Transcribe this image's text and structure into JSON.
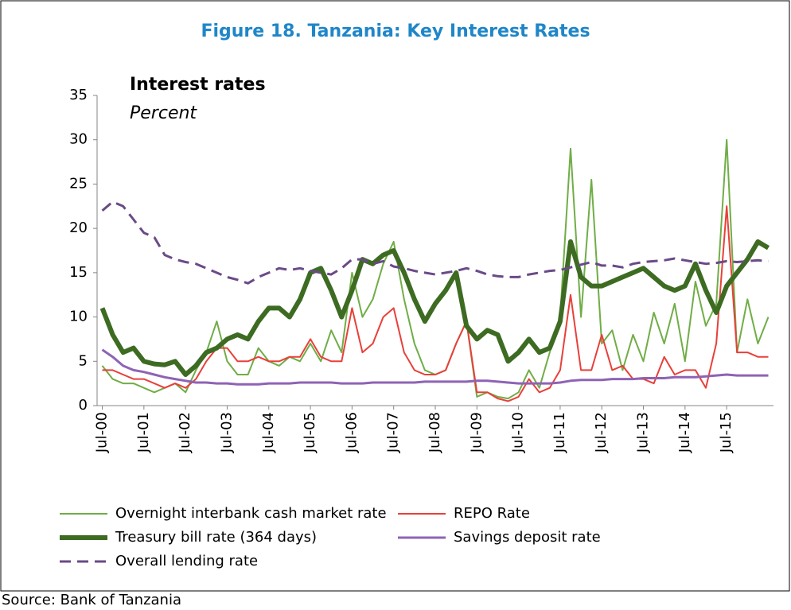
{
  "chart_data": {
    "type": "line",
    "title": "Figure 18. Tanzania: Key Interest Rates",
    "subtitle": "Interest rates",
    "y_label": "Percent",
    "source": "Source: Bank of Tanzania",
    "categories": [
      "Jul-00",
      null,
      null,
      null,
      "Jul-01",
      null,
      null,
      null,
      "Jul-02",
      null,
      null,
      null,
      "Jul-03",
      null,
      null,
      null,
      "Jul-04",
      null,
      null,
      null,
      "Jul-05",
      null,
      null,
      null,
      "Jul-06",
      null,
      null,
      null,
      "Jul-07",
      null,
      null,
      null,
      "Jul-08",
      null,
      null,
      null,
      "Jul-09",
      null,
      null,
      null,
      "Jul-10",
      null,
      null,
      null,
      "Jul-11",
      null,
      null,
      null,
      "Jul-12",
      null,
      null,
      null,
      "Jul-13",
      null,
      null,
      null,
      "Jul-14",
      null,
      null,
      null,
      "Jul-15",
      null,
      null,
      null,
      null
    ],
    "ylim": [
      0,
      35
    ],
    "yticks": [
      0,
      5,
      10,
      15,
      20,
      25,
      30,
      35
    ],
    "grid": false,
    "series": [
      {
        "name": "Overnight interbank cash market rate",
        "color": "#70ad47",
        "line_width": 2,
        "dashed": false,
        "values": [
          4.5,
          3,
          2.5,
          2.5,
          2,
          1.5,
          2,
          2.5,
          1.5,
          4,
          6,
          9.5,
          5,
          3.5,
          3.5,
          6.5,
          5,
          4.5,
          5.5,
          5,
          7,
          5,
          8.5,
          6,
          15,
          10,
          12,
          16,
          18.5,
          12,
          7,
          4,
          3.5,
          4,
          7,
          9.5,
          1,
          1.5,
          1,
          0.8,
          1.5,
          4,
          2,
          6,
          10,
          29,
          10,
          25.5,
          7,
          8.5,
          4,
          8,
          5,
          10.5,
          7,
          11.5,
          5,
          14,
          9,
          11.5,
          30,
          6,
          12,
          7,
          10
        ]
      },
      {
        "name": "REPO Rate",
        "color": "#e8403a",
        "line_width": 2,
        "dashed": false,
        "values": [
          4,
          4,
          3.5,
          3,
          3,
          2.5,
          2,
          2.5,
          2,
          3,
          5,
          6.5,
          6.5,
          5,
          5,
          5.5,
          5,
          5,
          5.5,
          5.5,
          7.5,
          5.5,
          5,
          5,
          11,
          6,
          7,
          10,
          11,
          6,
          4,
          3.5,
          3.5,
          4,
          7,
          9.5,
          1.5,
          1.5,
          0.8,
          0.5,
          1,
          3,
          1.5,
          2,
          4,
          12.5,
          4,
          4,
          8,
          4,
          4.5,
          3,
          3,
          2.5,
          5.5,
          3.5,
          4,
          4,
          2,
          7,
          22.5,
          6,
          6,
          5.5,
          5.5
        ]
      },
      {
        "name": "Treasury bill rate (364 days)",
        "color": "#3d6b22",
        "line_width": 6,
        "dashed": false,
        "values": [
          11,
          8,
          6,
          6.5,
          5,
          4.7,
          4.6,
          5,
          3.5,
          4.5,
          6,
          6.5,
          7.5,
          8,
          7.5,
          9.5,
          11,
          11,
          10,
          12,
          15,
          15.5,
          13,
          10,
          13,
          16.5,
          16,
          17,
          17.5,
          15,
          12,
          9.5,
          11.5,
          13,
          15,
          9,
          7.5,
          8.5,
          8,
          5,
          6,
          7.5,
          6,
          6.5,
          9.5,
          18.5,
          14.5,
          13.5,
          13.5,
          14,
          14.5,
          15,
          15.5,
          14.5,
          13.5,
          13,
          13.5,
          16,
          13,
          10.5,
          13.5,
          15,
          16.5,
          18.5,
          17.8
        ]
      },
      {
        "name": "Savings deposit rate",
        "color": "#8e63b5",
        "line_width": 3,
        "dashed": false,
        "values": [
          6.3,
          5.5,
          4.5,
          4,
          3.8,
          3.5,
          3.2,
          3,
          2.8,
          2.6,
          2.6,
          2.5,
          2.5,
          2.4,
          2.4,
          2.4,
          2.5,
          2.5,
          2.5,
          2.6,
          2.6,
          2.6,
          2.6,
          2.5,
          2.5,
          2.5,
          2.6,
          2.6,
          2.6,
          2.6,
          2.6,
          2.7,
          2.7,
          2.7,
          2.7,
          2.7,
          2.8,
          2.8,
          2.7,
          2.6,
          2.5,
          2.5,
          2.5,
          2.5,
          2.6,
          2.8,
          2.9,
          2.9,
          2.9,
          3,
          3,
          3,
          3.1,
          3.1,
          3.1,
          3.2,
          3.2,
          3.2,
          3.3,
          3.4,
          3.5,
          3.4,
          3.4,
          3.4,
          3.4
        ]
      },
      {
        "name": "Overall lending rate",
        "color": "#6a4a87",
        "line_width": 3,
        "dashed": true,
        "values": [
          22,
          23,
          22.5,
          21,
          19.5,
          19,
          17,
          16.5,
          16.2,
          16,
          15.5,
          15,
          14.5,
          14.2,
          13.8,
          14.5,
          15,
          15.5,
          15.3,
          15.5,
          15.2,
          15,
          14.8,
          15.5,
          16.5,
          16.5,
          16,
          16.3,
          15.7,
          15.5,
          15.2,
          15,
          14.8,
          15,
          15.2,
          15.5,
          15.2,
          14.8,
          14.6,
          14.5,
          14.5,
          14.8,
          15,
          15.2,
          15.3,
          15.6,
          15.9,
          16.2,
          15.8,
          15.8,
          15.6,
          16,
          16.2,
          16.3,
          16.4,
          16.6,
          16.4,
          16.2,
          16,
          16.1,
          16.3,
          16.2,
          16.3,
          16.4,
          16.3
        ]
      }
    ]
  }
}
